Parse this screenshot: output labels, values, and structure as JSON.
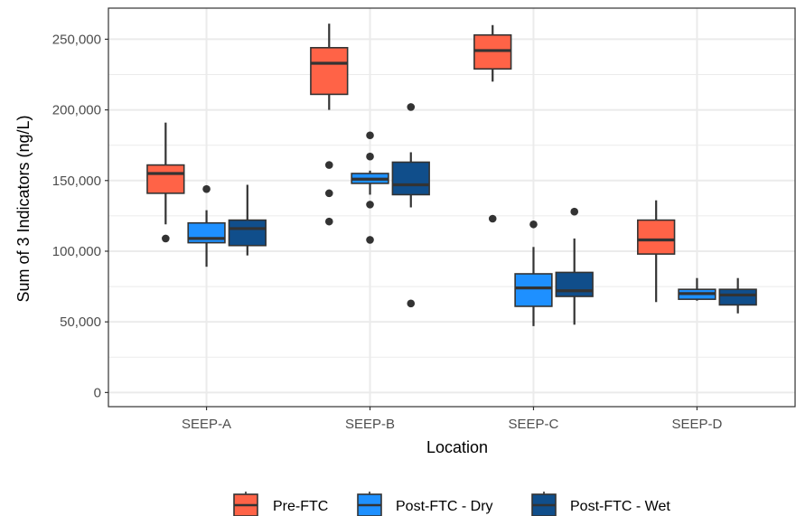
{
  "chart_data": {
    "type": "boxplot",
    "xlabel": "Location",
    "ylabel": "Sum of 3 Indicators (ng/L)",
    "ylim": [
      -10000,
      272000
    ],
    "yticks": [
      0,
      50000,
      100000,
      150000,
      200000,
      250000
    ],
    "ytick_labels": [
      "0",
      "50,000",
      "100,000",
      "150,000",
      "200,000",
      "250,000"
    ],
    "categories": [
      "SEEP-A",
      "SEEP-B",
      "SEEP-C",
      "SEEP-D"
    ],
    "grid": true,
    "legend_position": "bottom",
    "series": [
      {
        "name": "Pre-FTC",
        "color": "#ff6347",
        "boxes": [
          {
            "whisker_low": 119000,
            "q1": 141000,
            "median": 155000,
            "q3": 161000,
            "whisker_high": 191000,
            "outliers": [
              109000
            ]
          },
          {
            "whisker_low": 200000,
            "q1": 211000,
            "median": 233000,
            "q3": 244000,
            "whisker_high": 261000,
            "outliers": [
              161000,
              141000,
              121000
            ]
          },
          {
            "whisker_low": 220000,
            "q1": 229000,
            "median": 242000,
            "q3": 253000,
            "whisker_high": 260000,
            "outliers": [
              123000
            ]
          },
          {
            "whisker_low": 64000,
            "q1": 98000,
            "median": 108000,
            "q3": 122000,
            "whisker_high": 136000,
            "outliers": []
          }
        ]
      },
      {
        "name": "Post-FTC - Dry",
        "color": "#1e90ff",
        "boxes": [
          {
            "whisker_low": 89000,
            "q1": 106000,
            "median": 109000,
            "q3": 120000,
            "whisker_high": 129000,
            "outliers": [
              144000
            ]
          },
          {
            "whisker_low": 140000,
            "q1": 148000,
            "median": 151000,
            "q3": 155000,
            "whisker_high": 157000,
            "outliers": [
              182000,
              167000,
              133000,
              108000
            ]
          },
          {
            "whisker_low": 47000,
            "q1": 61000,
            "median": 74000,
            "q3": 84000,
            "whisker_high": 103000,
            "outliers": [
              119000
            ]
          },
          {
            "whisker_low": 65000,
            "q1": 66000,
            "median": 70000,
            "q3": 73000,
            "whisker_high": 81000,
            "outliers": []
          }
        ]
      },
      {
        "name": "Post-FTC - Wet",
        "color": "#104e8b",
        "boxes": [
          {
            "whisker_low": 97000,
            "q1": 104000,
            "median": 116000,
            "q3": 122000,
            "whisker_high": 147000,
            "outliers": []
          },
          {
            "whisker_low": 131000,
            "q1": 140000,
            "median": 147000,
            "q3": 163000,
            "whisker_high": 170000,
            "outliers": [
              202000,
              63000
            ]
          },
          {
            "whisker_low": 48000,
            "q1": 68000,
            "median": 72000,
            "q3": 85000,
            "whisker_high": 109000,
            "outliers": [
              128000
            ]
          },
          {
            "whisker_low": 56000,
            "q1": 62000,
            "median": 69000,
            "q3": 73000,
            "whisker_high": 81000,
            "outliers": []
          }
        ]
      }
    ]
  }
}
